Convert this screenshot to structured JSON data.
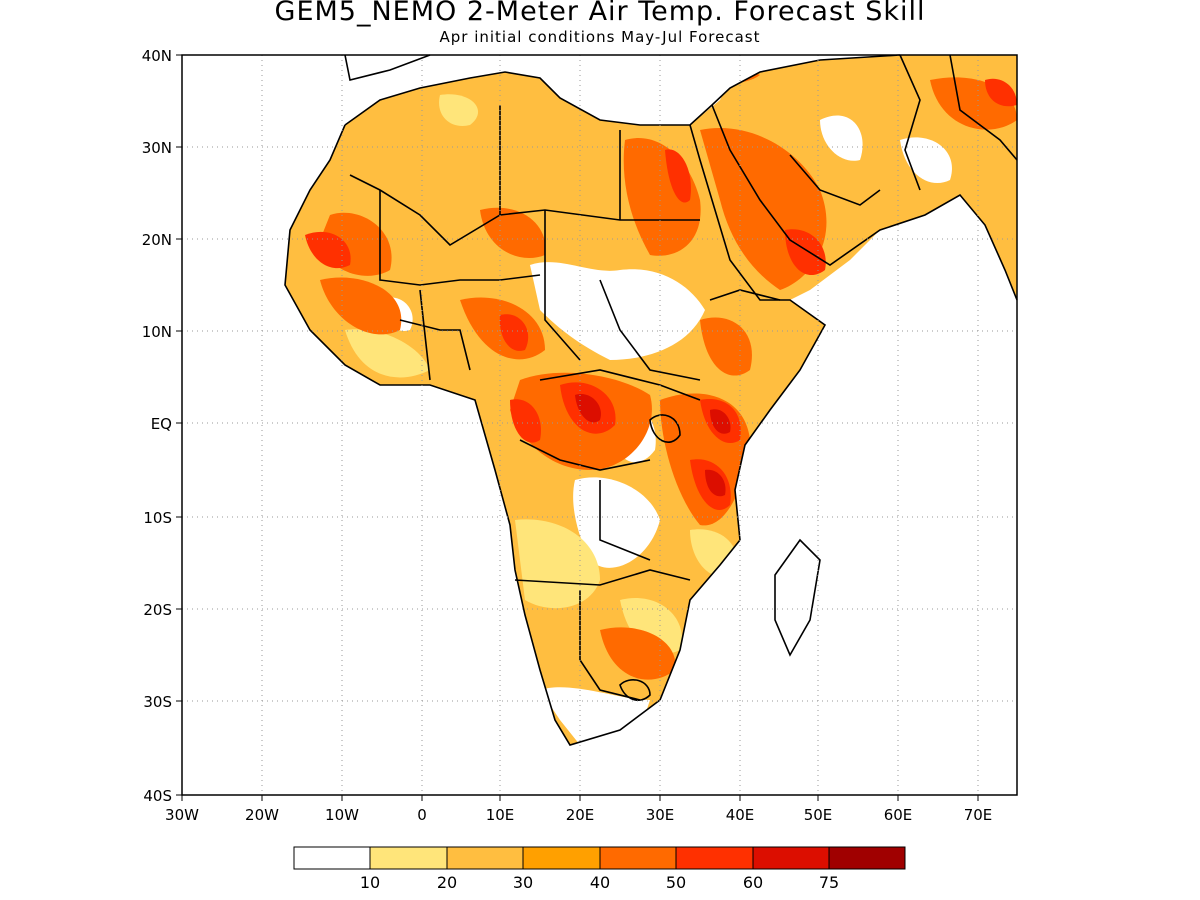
{
  "map": {
    "title": "GEM5_NEMO 2-Meter Air Temp. Forecast Skill",
    "subtitle": "Apr initial conditions  May-Jul Forecast",
    "lat_labels": [
      "40N",
      "30N",
      "20N",
      "10N",
      "EQ",
      "10S",
      "20S",
      "30S",
      "40S"
    ],
    "lon_labels": [
      "30W",
      "20W",
      "10W",
      "0",
      "10E",
      "20E",
      "30E",
      "40E",
      "50E",
      "60E",
      "70E"
    ],
    "lat_range": [
      -40,
      40
    ],
    "lon_range": [
      -30,
      75
    ],
    "grid": "dotted",
    "region": "Africa and Middle East"
  },
  "colorbar": {
    "labels": [
      "10",
      "20",
      "30",
      "40",
      "50",
      "60",
      "75"
    ],
    "colors": [
      "#ffffff",
      "#ffe57a",
      "#ffbe40",
      "#ffa000",
      "#ff6a00",
      "#ff3000",
      "#dc0e00",
      "#a00000"
    ]
  }
}
